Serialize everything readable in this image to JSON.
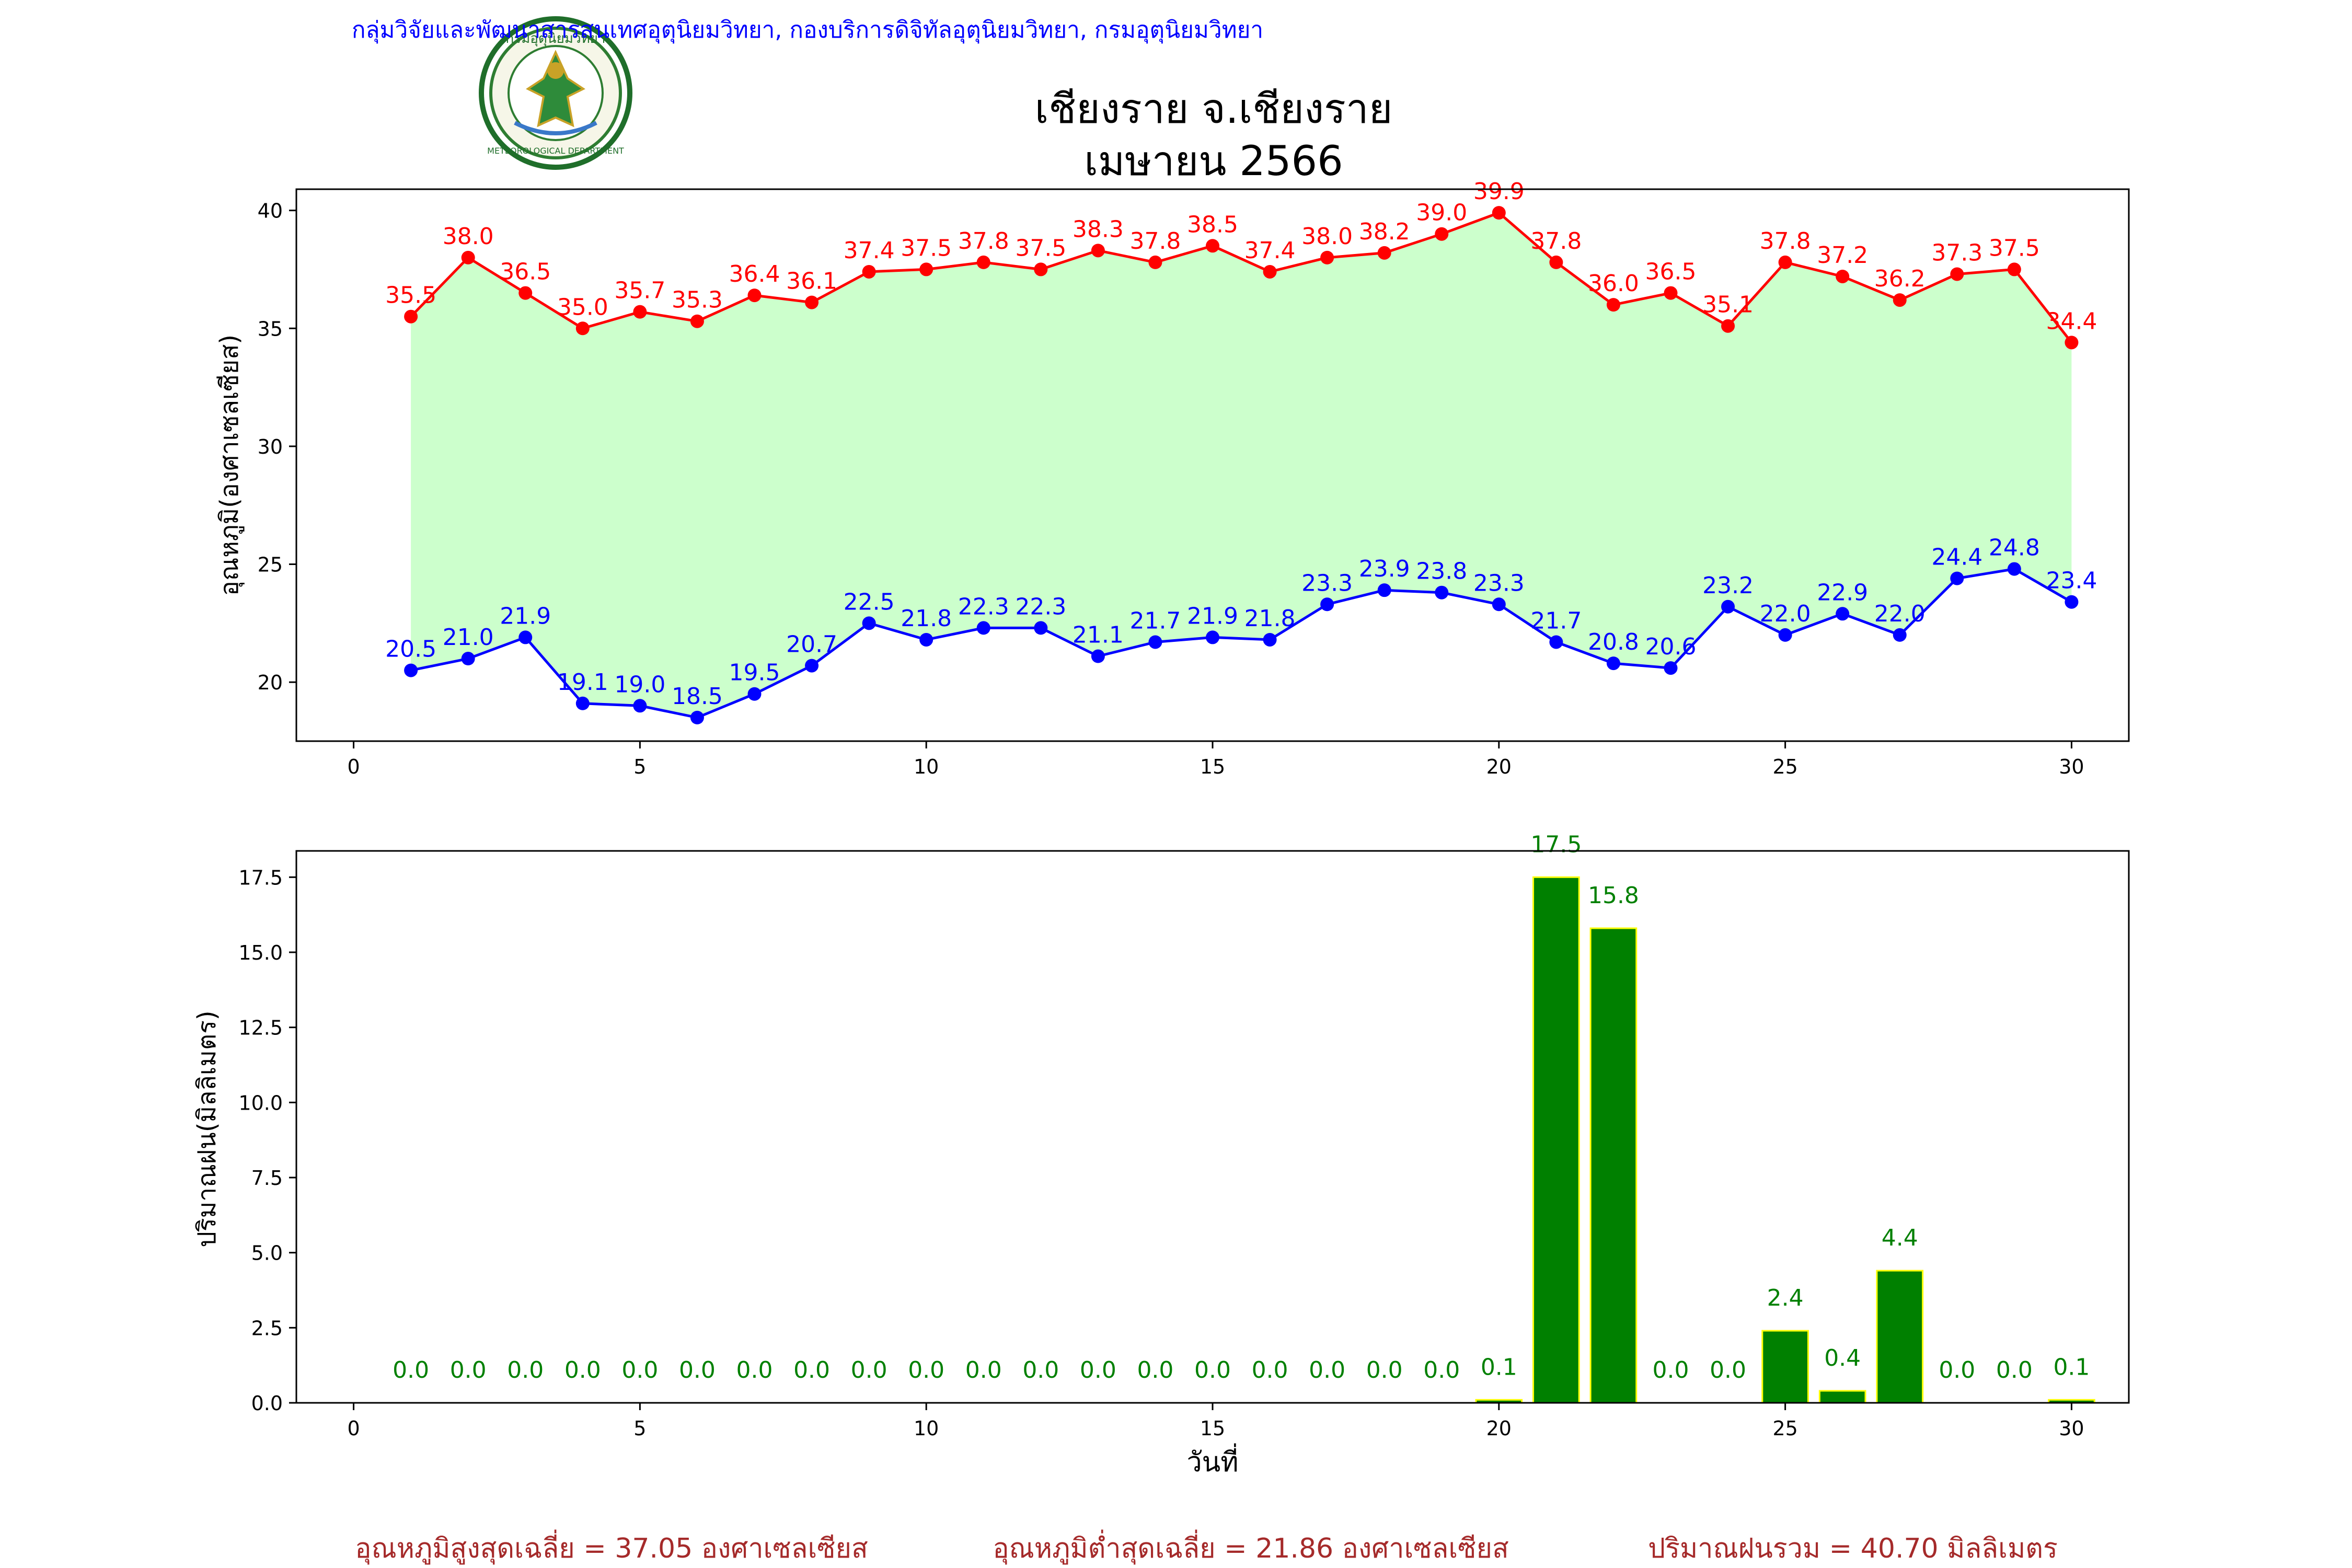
{
  "header": {
    "organization": "กลุ่มวิจัยและพัฒนาสารสนเทศอุตุนิยมวิทยา, กองบริการดิจิทัลอุตุนิยมวิทยา, กรมอุตุนิยมวิทยา",
    "title_line1": "เชียงราย จ.เชียงราย",
    "title_line2": "เมษายน 2566"
  },
  "logo": {
    "text_top": "กรมอุตุนิยมวิทยา",
    "text_bottom": "METEOROLOGICAL DEPARTMENT"
  },
  "colors": {
    "max_temp": "#ff0000",
    "min_temp": "#0000ff",
    "fill": "#ccffcc",
    "rain_bar": "#008000",
    "rain_edge": "#ffff00",
    "rain_label": "#008000",
    "header_blue": "#0000ff",
    "footer": "#a52a2a"
  },
  "chart_data": [
    {
      "type": "line",
      "ylabel": "อุณหภูมิ(องศาเซลเซียส)",
      "xlabel": "",
      "xlim": [
        -1,
        31
      ],
      "ylim": [
        17.5,
        40.9
      ],
      "xticks": [
        0,
        5,
        10,
        15,
        20,
        25,
        30
      ],
      "yticks": [
        20,
        25,
        30,
        35,
        40
      ],
      "x": [
        1,
        2,
        3,
        4,
        5,
        6,
        7,
        8,
        9,
        10,
        11,
        12,
        13,
        14,
        15,
        16,
        17,
        18,
        19,
        20,
        21,
        22,
        23,
        24,
        25,
        26,
        27,
        28,
        29,
        30
      ],
      "series": [
        {
          "values": [
            35.5,
            38.0,
            36.5,
            35.0,
            35.7,
            35.3,
            36.4,
            36.1,
            37.4,
            37.5,
            37.8,
            37.5,
            38.3,
            37.8,
            38.5,
            37.4,
            38.0,
            38.2,
            39.0,
            39.9,
            37.8,
            36.0,
            36.5,
            35.1,
            37.8,
            37.2,
            36.2,
            37.3,
            37.5,
            34.4
          ]
        },
        {
          "values": [
            20.5,
            21.0,
            21.9,
            19.1,
            19.0,
            18.5,
            19.5,
            20.7,
            22.5,
            21.8,
            22.3,
            22.3,
            21.1,
            21.7,
            21.9,
            21.8,
            23.3,
            23.9,
            23.8,
            23.3,
            21.7,
            20.8,
            20.6,
            23.2,
            22.0,
            22.9,
            22.0,
            24.4,
            24.8,
            23.4
          ]
        }
      ]
    },
    {
      "type": "bar",
      "ylabel": "ปริมาณฝน(มิลลิเมตร)",
      "xlabel": "วันที่",
      "xlim": [
        -1,
        31
      ],
      "ylim": [
        0,
        18.375
      ],
      "xticks": [
        0,
        5,
        10,
        15,
        20,
        25,
        30
      ],
      "yticks": [
        0.0,
        2.5,
        5.0,
        7.5,
        10.0,
        12.5,
        15.0,
        17.5
      ],
      "x": [
        1,
        2,
        3,
        4,
        5,
        6,
        7,
        8,
        9,
        10,
        11,
        12,
        13,
        14,
        15,
        16,
        17,
        18,
        19,
        20,
        21,
        22,
        23,
        24,
        25,
        26,
        27,
        28,
        29,
        30
      ],
      "values": [
        0.0,
        0.0,
        0.0,
        0.0,
        0.0,
        0.0,
        0.0,
        0.0,
        0.0,
        0.0,
        0.0,
        0.0,
        0.0,
        0.0,
        0.0,
        0.0,
        0.0,
        0.0,
        0.0,
        0.1,
        17.5,
        15.8,
        0.0,
        0.0,
        2.4,
        0.4,
        4.4,
        0.0,
        0.0,
        0.1
      ]
    }
  ],
  "footer": {
    "avg_max": "อุณหภูมิสูงสุดเฉลี่ย = 37.05 องศาเซลเซียส",
    "avg_min": "อุณหภูมิต่ำสุดเฉลี่ย = 21.86 องศาเซลเซียส",
    "total_rain": "ปริมาณฝนรวม = 40.70 มิลลิเมตร"
  }
}
